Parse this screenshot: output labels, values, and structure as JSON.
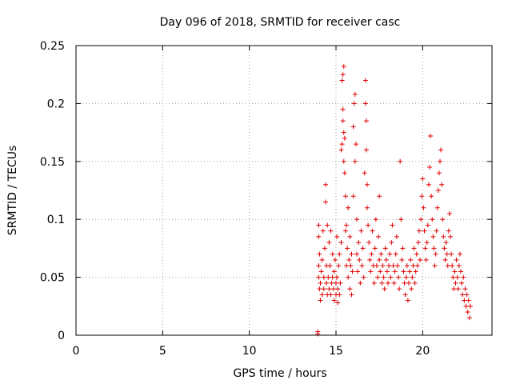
{
  "chart_data": {
    "type": "scatter",
    "title": "Day 096 of 2018, SRMTID for receiver casc",
    "xlabel": "GPS time / hours",
    "ylabel": "SRMTID / TECUs",
    "xlim": [
      0,
      24
    ],
    "ylim": [
      0,
      0.25
    ],
    "grid": true,
    "marker": "+",
    "colors": {
      "points": "#e00000"
    },
    "xticks": [
      {
        "value": 0,
        "label": "0"
      },
      {
        "value": 5,
        "label": "5"
      },
      {
        "value": 10,
        "label": "10"
      },
      {
        "value": 15,
        "label": "15"
      },
      {
        "value": 20,
        "label": "20"
      }
    ],
    "yticks": [
      {
        "value": 0,
        "label": "0"
      },
      {
        "value": 0.05,
        "label": "0.05"
      },
      {
        "value": 0.1,
        "label": "0.1"
      },
      {
        "value": 0.15,
        "label": "0.15"
      },
      {
        "value": 0.2,
        "label": "0.2"
      },
      {
        "value": 0.25,
        "label": "0.25"
      }
    ],
    "series": [
      {
        "name": "SRMTID",
        "points": [
          [
            13.95,
            0.001
          ],
          [
            13.95,
            0.003
          ],
          [
            14.0,
            0.095
          ],
          [
            14.0,
            0.085
          ],
          [
            14.0,
            0.06
          ],
          [
            14.0,
            0.05
          ],
          [
            14.05,
            0.04
          ],
          [
            14.05,
            0.07
          ],
          [
            14.1,
            0.045
          ],
          [
            14.1,
            0.03
          ],
          [
            14.15,
            0.055
          ],
          [
            14.2,
            0.065
          ],
          [
            14.2,
            0.035
          ],
          [
            14.25,
            0.09
          ],
          [
            14.3,
            0.05
          ],
          [
            14.3,
            0.04
          ],
          [
            14.35,
            0.075
          ],
          [
            14.4,
            0.13
          ],
          [
            14.4,
            0.115
          ],
          [
            14.45,
            0.06
          ],
          [
            14.45,
            0.045
          ],
          [
            14.5,
            0.035
          ],
          [
            14.5,
            0.095
          ],
          [
            14.55,
            0.05
          ],
          [
            14.6,
            0.08
          ],
          [
            14.6,
            0.04
          ],
          [
            14.65,
            0.06
          ],
          [
            14.7,
            0.035
          ],
          [
            14.7,
            0.09
          ],
          [
            14.75,
            0.045
          ],
          [
            14.8,
            0.05
          ],
          [
            14.8,
            0.07
          ],
          [
            14.85,
            0.04
          ],
          [
            14.9,
            0.03
          ],
          [
            14.9,
            0.055
          ],
          [
            14.95,
            0.065
          ],
          [
            15.0,
            0.045
          ],
          [
            15.0,
            0.035
          ],
          [
            15.05,
            0.05
          ],
          [
            15.05,
            0.085
          ],
          [
            15.1,
            0.028
          ],
          [
            15.1,
            0.04
          ],
          [
            15.15,
            0.06
          ],
          [
            15.2,
            0.07
          ],
          [
            15.2,
            0.035
          ],
          [
            15.25,
            0.045
          ],
          [
            15.3,
            0.16
          ],
          [
            15.3,
            0.08
          ],
          [
            15.35,
            0.165
          ],
          [
            15.35,
            0.22
          ],
          [
            15.4,
            0.225
          ],
          [
            15.4,
            0.195
          ],
          [
            15.4,
            0.185
          ],
          [
            15.45,
            0.232
          ],
          [
            15.45,
            0.175
          ],
          [
            15.45,
            0.15
          ],
          [
            15.5,
            0.14
          ],
          [
            15.5,
            0.17
          ],
          [
            15.55,
            0.12
          ],
          [
            15.55,
            0.09
          ],
          [
            15.6,
            0.095
          ],
          [
            15.6,
            0.06
          ],
          [
            15.65,
            0.075
          ],
          [
            15.7,
            0.11
          ],
          [
            15.7,
            0.05
          ],
          [
            15.75,
            0.065
          ],
          [
            15.8,
            0.085
          ],
          [
            15.8,
            0.04
          ],
          [
            15.85,
            0.06
          ],
          [
            15.9,
            0.07
          ],
          [
            15.9,
            0.035
          ],
          [
            15.95,
            0.055
          ],
          [
            16.0,
            0.18
          ],
          [
            16.0,
            0.12
          ],
          [
            16.05,
            0.2
          ],
          [
            16.1,
            0.208
          ],
          [
            16.1,
            0.15
          ],
          [
            16.15,
            0.165
          ],
          [
            16.2,
            0.1
          ],
          [
            16.2,
            0.07
          ],
          [
            16.25,
            0.055
          ],
          [
            16.3,
            0.08
          ],
          [
            16.35,
            0.065
          ],
          [
            16.4,
            0.045
          ],
          [
            16.45,
            0.09
          ],
          [
            16.5,
            0.06
          ],
          [
            16.55,
            0.075
          ],
          [
            16.6,
            0.05
          ],
          [
            16.65,
            0.14
          ],
          [
            16.7,
            0.22
          ],
          [
            16.7,
            0.2
          ],
          [
            16.75,
            0.185
          ],
          [
            16.75,
            0.16
          ],
          [
            16.8,
            0.13
          ],
          [
            16.8,
            0.11
          ],
          [
            16.85,
            0.095
          ],
          [
            16.9,
            0.08
          ],
          [
            16.95,
            0.065
          ],
          [
            17.0,
            0.055
          ],
          [
            17.05,
            0.07
          ],
          [
            17.1,
            0.09
          ],
          [
            17.15,
            0.06
          ],
          [
            17.2,
            0.045
          ],
          [
            17.25,
            0.075
          ],
          [
            17.3,
            0.1
          ],
          [
            17.35,
            0.06
          ],
          [
            17.4,
            0.05
          ],
          [
            17.45,
            0.085
          ],
          [
            17.5,
            0.12
          ],
          [
            17.5,
            0.065
          ],
          [
            17.55,
            0.055
          ],
          [
            17.6,
            0.07
          ],
          [
            17.65,
            0.045
          ],
          [
            17.7,
            0.06
          ],
          [
            17.75,
            0.05
          ],
          [
            17.8,
            0.04
          ],
          [
            17.85,
            0.075
          ],
          [
            17.9,
            0.065
          ],
          [
            17.95,
            0.055
          ],
          [
            18.0,
            0.045
          ],
          [
            18.05,
            0.06
          ],
          [
            18.1,
            0.07
          ],
          [
            18.15,
            0.05
          ],
          [
            18.2,
            0.08
          ],
          [
            18.25,
            0.095
          ],
          [
            18.3,
            0.06
          ],
          [
            18.35,
            0.045
          ],
          [
            18.4,
            0.055
          ],
          [
            18.45,
            0.07
          ],
          [
            18.5,
            0.085
          ],
          [
            18.55,
            0.06
          ],
          [
            18.6,
            0.05
          ],
          [
            18.65,
            0.04
          ],
          [
            18.7,
            0.15
          ],
          [
            18.75,
            0.1
          ],
          [
            18.8,
            0.065
          ],
          [
            18.85,
            0.075
          ],
          [
            18.9,
            0.055
          ],
          [
            18.95,
            0.045
          ],
          [
            19.0,
            0.035
          ],
          [
            19.05,
            0.05
          ],
          [
            19.1,
            0.06
          ],
          [
            19.15,
            0.03
          ],
          [
            19.2,
            0.045
          ],
          [
            19.25,
            0.055
          ],
          [
            19.3,
            0.065
          ],
          [
            19.35,
            0.04
          ],
          [
            19.4,
            0.05
          ],
          [
            19.45,
            0.06
          ],
          [
            19.5,
            0.075
          ],
          [
            19.55,
            0.045
          ],
          [
            19.6,
            0.055
          ],
          [
            19.65,
            0.07
          ],
          [
            19.7,
            0.06
          ],
          [
            19.75,
            0.08
          ],
          [
            19.8,
            0.09
          ],
          [
            19.85,
            0.065
          ],
          [
            19.9,
            0.1
          ],
          [
            19.95,
            0.12
          ],
          [
            20.0,
            0.135
          ],
          [
            20.05,
            0.11
          ],
          [
            20.1,
            0.09
          ],
          [
            20.15,
            0.075
          ],
          [
            20.2,
            0.065
          ],
          [
            20.25,
            0.08
          ],
          [
            20.3,
            0.095
          ],
          [
            20.35,
            0.13
          ],
          [
            20.4,
            0.145
          ],
          [
            20.45,
            0.172
          ],
          [
            20.5,
            0.12
          ],
          [
            20.55,
            0.1
          ],
          [
            20.6,
            0.085
          ],
          [
            20.65,
            0.075
          ],
          [
            20.7,
            0.06
          ],
          [
            20.75,
            0.07
          ],
          [
            20.8,
            0.09
          ],
          [
            20.85,
            0.11
          ],
          [
            20.9,
            0.125
          ],
          [
            20.95,
            0.14
          ],
          [
            21.0,
            0.15
          ],
          [
            21.05,
            0.16
          ],
          [
            21.1,
            0.13
          ],
          [
            21.15,
            0.1
          ],
          [
            21.2,
            0.085
          ],
          [
            21.25,
            0.075
          ],
          [
            21.3,
            0.065
          ],
          [
            21.35,
            0.08
          ],
          [
            21.4,
            0.07
          ],
          [
            21.45,
            0.06
          ],
          [
            21.5,
            0.09
          ],
          [
            21.55,
            0.105
          ],
          [
            21.6,
            0.085
          ],
          [
            21.65,
            0.07
          ],
          [
            21.7,
            0.06
          ],
          [
            21.75,
            0.05
          ],
          [
            21.8,
            0.04
          ],
          [
            21.85,
            0.055
          ],
          [
            21.9,
            0.045
          ],
          [
            21.95,
            0.065
          ],
          [
            22.0,
            0.05
          ],
          [
            22.05,
            0.04
          ],
          [
            22.1,
            0.06
          ],
          [
            22.15,
            0.07
          ],
          [
            22.2,
            0.055
          ],
          [
            22.25,
            0.045
          ],
          [
            22.3,
            0.035
          ],
          [
            22.35,
            0.05
          ],
          [
            22.4,
            0.03
          ],
          [
            22.45,
            0.04
          ],
          [
            22.5,
            0.025
          ],
          [
            22.55,
            0.035
          ],
          [
            22.6,
            0.02
          ],
          [
            22.65,
            0.03
          ],
          [
            22.7,
            0.015
          ],
          [
            22.75,
            0.025
          ]
        ]
      }
    ]
  }
}
